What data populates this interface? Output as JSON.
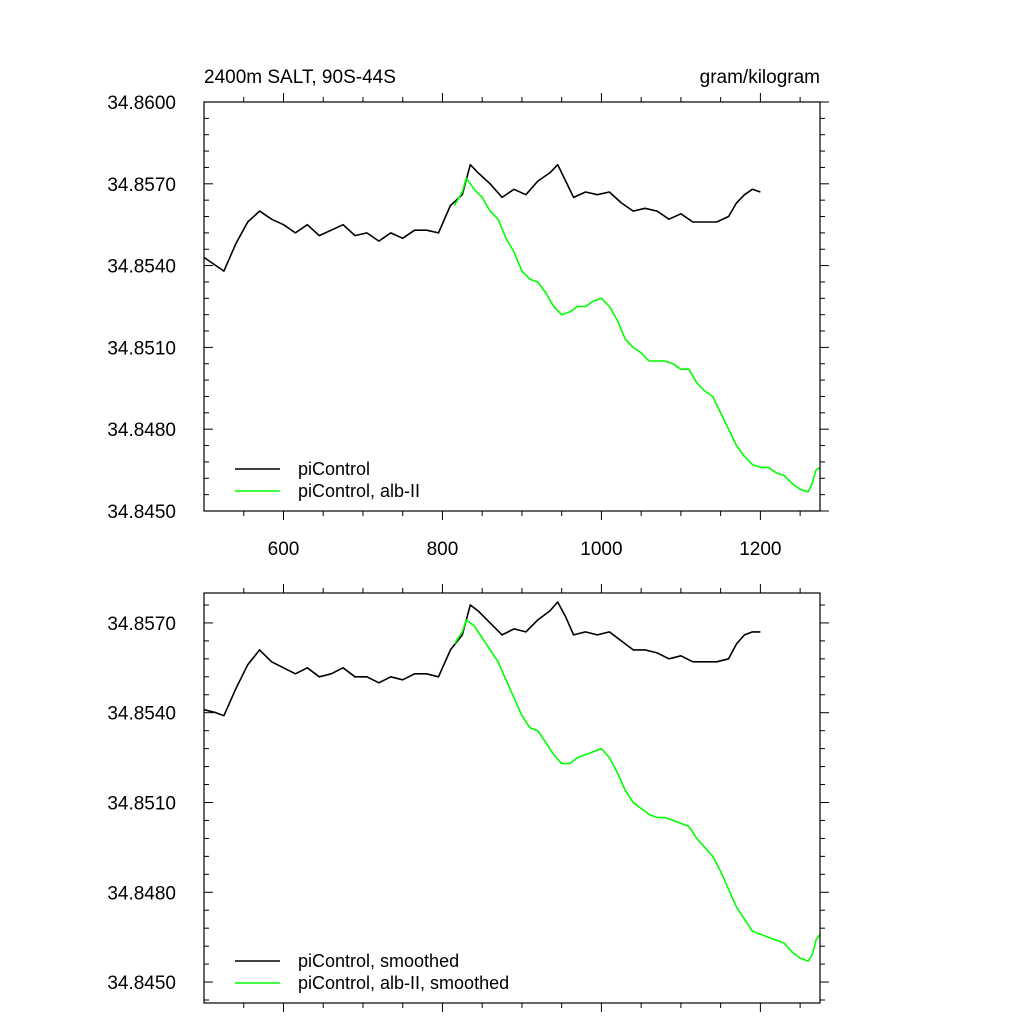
{
  "chart_data": [
    {
      "type": "line",
      "title_left": "2400m SALT, 90S-44S",
      "title_right": "gram/kilogram",
      "xlabel": "",
      "ylabel": "",
      "xlim": [
        500,
        1275
      ],
      "ylim": [
        34.845,
        34.86
      ],
      "x_ticks": [
        600,
        800,
        1000,
        1200
      ],
      "x_tick_labels": [
        "600",
        "800",
        "1000",
        "1200"
      ],
      "y_ticks": [
        34.845,
        34.848,
        34.851,
        34.854,
        34.857,
        34.86
      ],
      "y_tick_labels": [
        "34.8450",
        "34.8480",
        "34.8510",
        "34.8540",
        "34.8570",
        "34.8600"
      ],
      "legend": {
        "position": "bottom-left"
      },
      "series": [
        {
          "name": "piControl",
          "color": "#000000",
          "x": [
            500,
            515,
            525,
            540,
            555,
            570,
            585,
            600,
            615,
            630,
            645,
            660,
            675,
            690,
            705,
            720,
            735,
            750,
            765,
            780,
            795,
            810,
            825,
            835,
            845,
            860,
            875,
            890,
            905,
            920,
            935,
            945,
            955,
            965,
            980,
            995,
            1010,
            1025,
            1040,
            1055,
            1070,
            1085,
            1100,
            1115,
            1130,
            1145,
            1160,
            1170,
            1180,
            1190,
            1200
          ],
          "values": [
            34.8543,
            34.854,
            34.8538,
            34.8548,
            34.8556,
            34.856,
            34.8557,
            34.8555,
            34.8552,
            34.8555,
            34.8551,
            34.8553,
            34.8555,
            34.8551,
            34.8552,
            34.8549,
            34.8552,
            34.855,
            34.8553,
            34.8553,
            34.8552,
            34.8562,
            34.8566,
            34.8577,
            34.8574,
            34.857,
            34.8565,
            34.8568,
            34.8566,
            34.8571,
            34.8574,
            34.8577,
            34.8571,
            34.8565,
            34.8567,
            34.8566,
            34.8567,
            34.8563,
            34.856,
            34.8561,
            34.856,
            34.8557,
            34.8559,
            34.8556,
            34.8556,
            34.8556,
            34.8558,
            34.8563,
            34.8566,
            34.8568,
            34.8567
          ]
        },
        {
          "name": "piControl, alb-II",
          "color": "#00ff00",
          "x": [
            815,
            825,
            830,
            840,
            850,
            860,
            870,
            880,
            890,
            900,
            910,
            920,
            930,
            940,
            950,
            960,
            970,
            980,
            990,
            1000,
            1010,
            1020,
            1030,
            1040,
            1050,
            1060,
            1070,
            1080,
            1090,
            1100,
            1110,
            1120,
            1130,
            1140,
            1150,
            1160,
            1170,
            1180,
            1190,
            1200,
            1210,
            1220,
            1230,
            1240,
            1250,
            1260,
            1265,
            1270,
            1275
          ],
          "values": [
            34.8562,
            34.8567,
            34.8572,
            34.8568,
            34.8565,
            34.856,
            34.8557,
            34.855,
            34.8545,
            34.8538,
            34.8535,
            34.8534,
            34.853,
            34.8525,
            34.8522,
            34.8523,
            34.8525,
            34.8525,
            34.8527,
            34.8528,
            34.8525,
            34.852,
            34.8513,
            34.851,
            34.8508,
            34.8505,
            34.8505,
            34.8505,
            34.8504,
            34.8502,
            34.8502,
            34.8497,
            34.8494,
            34.8492,
            34.8486,
            34.848,
            34.8474,
            34.847,
            34.8467,
            34.8466,
            34.8466,
            34.8464,
            34.8463,
            34.846,
            34.8458,
            34.8457,
            34.846,
            34.8465,
            34.8466
          ]
        }
      ]
    },
    {
      "type": "line",
      "xlabel": "",
      "ylabel": "",
      "xlim": [
        500,
        1275
      ],
      "ylim": [
        34.8443,
        34.858
      ],
      "x_ticks": [
        600,
        800,
        1000,
        1200
      ],
      "y_ticks": [
        34.845,
        34.848,
        34.851,
        34.854,
        34.857
      ],
      "y_tick_labels": [
        "34.8450",
        "34.8480",
        "34.8510",
        "34.8540",
        "34.8570"
      ],
      "legend": {
        "position": "bottom-left"
      },
      "series": [
        {
          "name": "piControl, smoothed",
          "color": "#000000",
          "x": [
            500,
            515,
            525,
            540,
            555,
            570,
            585,
            600,
            615,
            630,
            645,
            660,
            675,
            690,
            705,
            720,
            735,
            750,
            765,
            780,
            795,
            810,
            825,
            835,
            845,
            860,
            875,
            890,
            905,
            920,
            935,
            945,
            955,
            965,
            980,
            995,
            1010,
            1025,
            1040,
            1055,
            1070,
            1085,
            1100,
            1115,
            1130,
            1145,
            1160,
            1170,
            1180,
            1190,
            1200
          ],
          "values": [
            34.8541,
            34.854,
            34.8539,
            34.8548,
            34.8556,
            34.8561,
            34.8557,
            34.8555,
            34.8553,
            34.8555,
            34.8552,
            34.8553,
            34.8555,
            34.8552,
            34.8552,
            34.855,
            34.8552,
            34.8551,
            34.8553,
            34.8553,
            34.8552,
            34.8561,
            34.8566,
            34.8576,
            34.8574,
            34.857,
            34.8566,
            34.8568,
            34.8567,
            34.8571,
            34.8574,
            34.8577,
            34.8572,
            34.8566,
            34.8567,
            34.8566,
            34.8567,
            34.8564,
            34.8561,
            34.8561,
            34.856,
            34.8558,
            34.8559,
            34.8557,
            34.8557,
            34.8557,
            34.8558,
            34.8563,
            34.8566,
            34.8567,
            34.8567
          ]
        },
        {
          "name": "piControl, alb-II, smoothed",
          "color": "#00ff00",
          "x": [
            815,
            825,
            830,
            840,
            850,
            860,
            870,
            880,
            890,
            900,
            910,
            920,
            930,
            940,
            950,
            960,
            970,
            980,
            990,
            1000,
            1010,
            1020,
            1030,
            1040,
            1050,
            1060,
            1070,
            1080,
            1090,
            1100,
            1110,
            1120,
            1130,
            1140,
            1150,
            1160,
            1170,
            1180,
            1190,
            1200,
            1210,
            1220,
            1230,
            1240,
            1250,
            1260,
            1265,
            1270,
            1275
          ],
          "values": [
            34.8563,
            34.8567,
            34.8571,
            34.8569,
            34.8565,
            34.8561,
            34.8557,
            34.8551,
            34.8545,
            34.8539,
            34.8535,
            34.8534,
            34.853,
            34.8526,
            34.8523,
            34.8523,
            34.8525,
            34.8526,
            34.8527,
            34.8528,
            34.8525,
            34.852,
            34.8514,
            34.851,
            34.8508,
            34.8506,
            34.8505,
            34.8505,
            34.8504,
            34.8503,
            34.8502,
            34.8498,
            34.8495,
            34.8492,
            34.8487,
            34.8481,
            34.8475,
            34.8471,
            34.8467,
            34.8466,
            34.8465,
            34.8464,
            34.8463,
            34.846,
            34.8458,
            34.8457,
            34.8459,
            34.8464,
            34.8466
          ]
        }
      ]
    }
  ]
}
